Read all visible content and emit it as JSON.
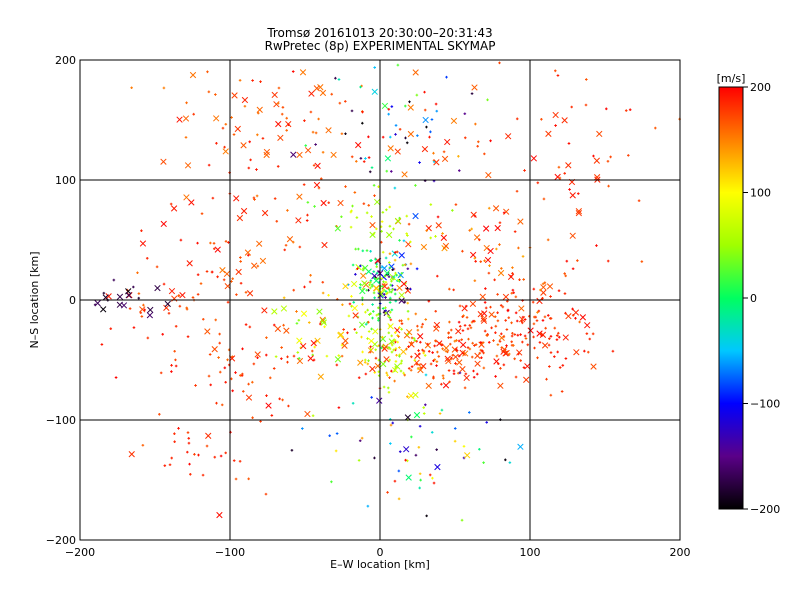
{
  "chart_data": {
    "type": "scatter",
    "title": "Tromsø 20161013 20:30:00–20:31:43",
    "subtitle": "RwPretec (8p) EXPERIMENTAL SKYMAP",
    "xlabel": "E–W location [km]",
    "ylabel": "N–S location [km]",
    "xlim": [
      -200,
      200
    ],
    "ylim": [
      -200,
      200
    ],
    "xticks": [
      -200,
      -100,
      0,
      100,
      200
    ],
    "yticks": [
      -200,
      -100,
      0,
      100,
      200
    ],
    "xtick_labels": [
      "−200",
      "−100",
      "0",
      "100",
      "200"
    ],
    "ytick_labels": [
      "−200",
      "−100",
      "0",
      "100",
      "200"
    ],
    "grid": true,
    "colorbar": {
      "label": "[m/s]",
      "range": [
        -200,
        200
      ],
      "ticks": [
        200,
        100,
        0,
        -100,
        -200
      ],
      "tick_labels": [
        "200",
        "100",
        "0",
        "−100",
        "−200"
      ],
      "stops": [
        "#000000",
        "#5a0088",
        "#0000ff",
        "#00c8ff",
        "#00ff60",
        "#a0ff00",
        "#ffff00",
        "#ff8000",
        "#ff0000"
      ]
    },
    "markers": {
      "dot": "small plus, velocity detection",
      "cross": "x, velocity detection"
    },
    "clusters": [
      {
        "x": 5,
        "y": 20,
        "sx": 12,
        "sy": 12,
        "n": 90,
        "vmin": -200,
        "vmax": 200,
        "cross": 0.35
      },
      {
        "x": 0,
        "y": 5,
        "sx": 8,
        "sy": 18,
        "n": 70,
        "vmin": -20,
        "vmax": 60,
        "cross": 0.15
      },
      {
        "x": 40,
        "y": -45,
        "sx": 22,
        "sy": 14,
        "n": 150,
        "vmin": 150,
        "vmax": 200,
        "cross": 0.2
      },
      {
        "x": 80,
        "y": -20,
        "sx": 22,
        "sy": 20,
        "n": 110,
        "vmin": 160,
        "vmax": 200,
        "cross": 0.25
      },
      {
        "x": 110,
        "y": -30,
        "sx": 18,
        "sy": 20,
        "n": 60,
        "vmin": 170,
        "vmax": 200,
        "cross": 0.3
      },
      {
        "x": 5,
        "y": -40,
        "sx": 10,
        "sy": 18,
        "n": 80,
        "vmin": 40,
        "vmax": 130,
        "cross": 0.15
      },
      {
        "x": -35,
        "y": -30,
        "sx": 18,
        "sy": 20,
        "n": 60,
        "vmin": 20,
        "vmax": 200,
        "cross": 0.25
      },
      {
        "x": -95,
        "y": -50,
        "sx": 40,
        "sy": 35,
        "n": 90,
        "vmin": 160,
        "vmax": 200,
        "cross": 0.2
      },
      {
        "x": -120,
        "y": 10,
        "sx": 30,
        "sy": 25,
        "n": 50,
        "vmin": 160,
        "vmax": 200,
        "cross": 0.3
      },
      {
        "x": -170,
        "y": 0,
        "sx": 12,
        "sy": 8,
        "n": 18,
        "vmin": -200,
        "vmax": -160,
        "cross": 0.8
      },
      {
        "x": -40,
        "y": 140,
        "sx": 60,
        "sy": 35,
        "n": 130,
        "vmin": 150,
        "vmax": 200,
        "cross": 0.35
      },
      {
        "x": 10,
        "y": 130,
        "sx": 30,
        "sy": 30,
        "n": 50,
        "vmin": -200,
        "vmax": 40,
        "cross": 0.2
      },
      {
        "x": 120,
        "y": 110,
        "sx": 45,
        "sy": 45,
        "n": 60,
        "vmin": 160,
        "vmax": 200,
        "cross": 0.4
      },
      {
        "x": 20,
        "y": -120,
        "sx": 30,
        "sy": 35,
        "n": 70,
        "vmin": -200,
        "vmax": 200,
        "cross": 0.15
      },
      {
        "x": -125,
        "y": -125,
        "sx": 15,
        "sy": 12,
        "n": 22,
        "vmin": 170,
        "vmax": 200,
        "cross": 0.05
      },
      {
        "x": 60,
        "y": 40,
        "sx": 40,
        "sy": 30,
        "n": 60,
        "vmin": 130,
        "vmax": 200,
        "cross": 0.35
      },
      {
        "x": -80,
        "y": 60,
        "sx": 45,
        "sy": 30,
        "n": 45,
        "vmin": 150,
        "vmax": 200,
        "cross": 0.3
      },
      {
        "x": 0,
        "y": 60,
        "sx": 20,
        "sy": 15,
        "n": 40,
        "vmin": 20,
        "vmax": 110,
        "cross": 0.1
      }
    ]
  }
}
